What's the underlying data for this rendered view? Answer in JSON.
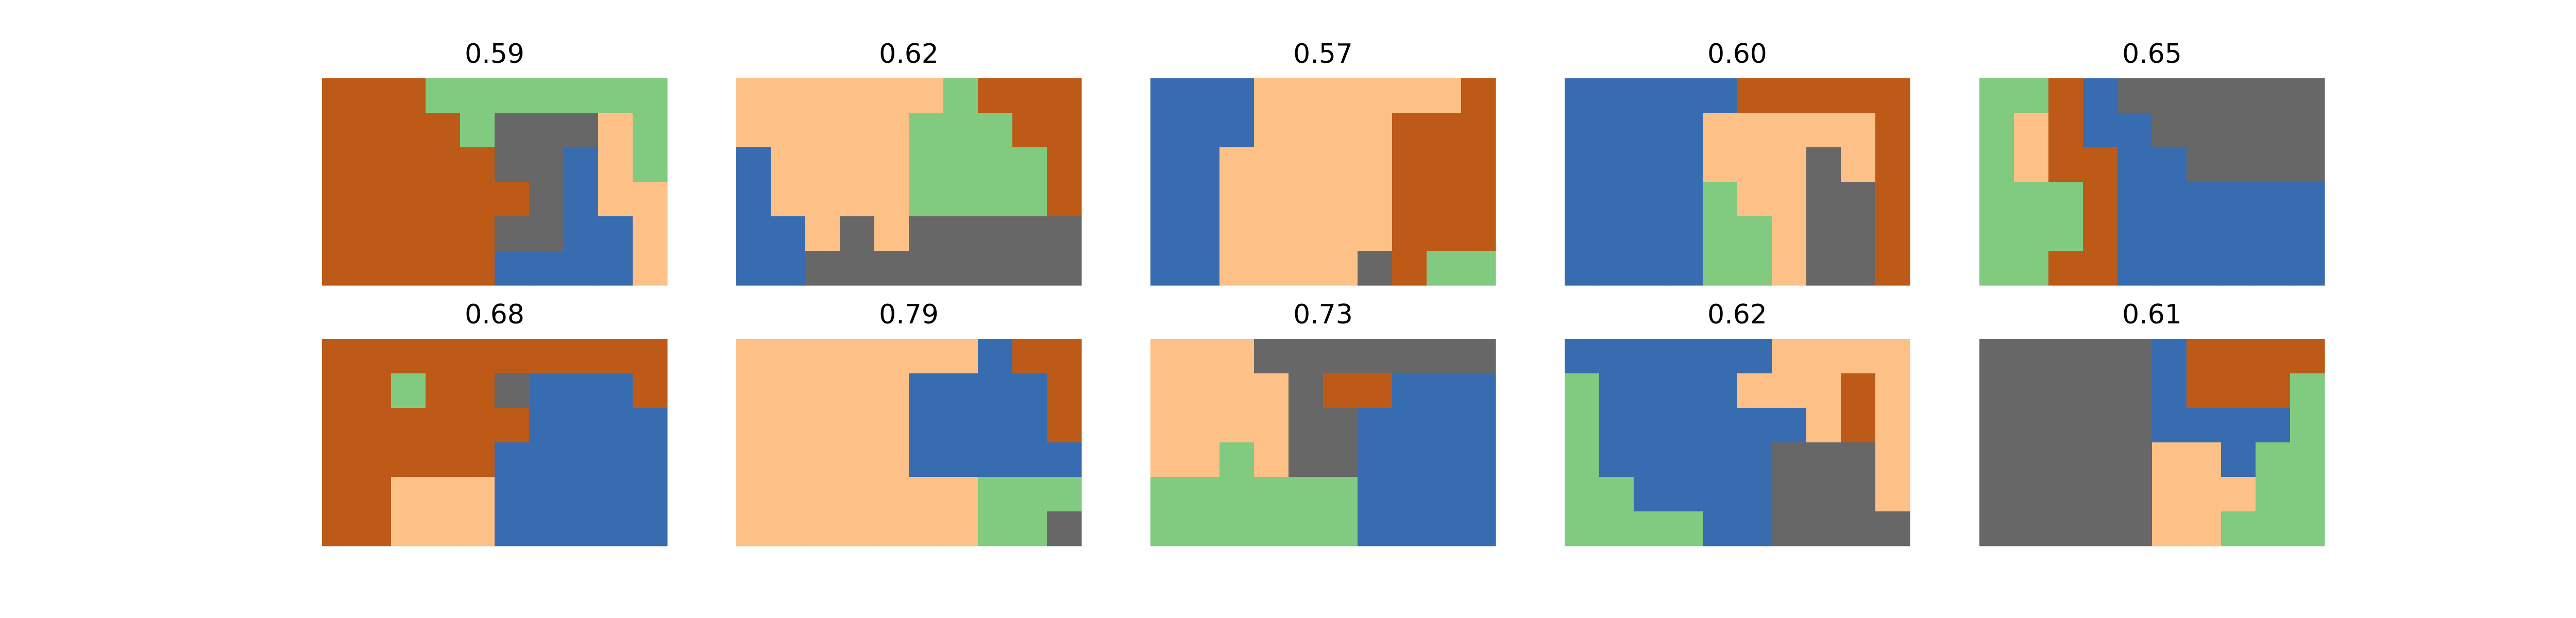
{
  "colors": {
    "0": "#be5a17",
    "1": "#80cb7f",
    "2": "#676767",
    "3": "#386cb0",
    "4": "#fdc086"
  },
  "chart_data": [
    {
      "type": "heatmap",
      "title": "0.59",
      "rows": [
        [
          0,
          0,
          0,
          1,
          1,
          1,
          1,
          1,
          1,
          1
        ],
        [
          0,
          0,
          0,
          0,
          1,
          2,
          2,
          2,
          4,
          1
        ],
        [
          0,
          0,
          0,
          0,
          0,
          2,
          2,
          3,
          4,
          1
        ],
        [
          0,
          0,
          0,
          0,
          0,
          0,
          2,
          3,
          4,
          4
        ],
        [
          0,
          0,
          0,
          0,
          0,
          2,
          2,
          3,
          3,
          4
        ],
        [
          0,
          0,
          0,
          0,
          0,
          3,
          3,
          3,
          3,
          4
        ]
      ]
    },
    {
      "type": "heatmap",
      "title": "0.62",
      "rows": [
        [
          4,
          4,
          4,
          4,
          4,
          4,
          1,
          0,
          0,
          0
        ],
        [
          4,
          4,
          4,
          4,
          4,
          1,
          1,
          1,
          0,
          0
        ],
        [
          3,
          4,
          4,
          4,
          4,
          1,
          1,
          1,
          1,
          0
        ],
        [
          3,
          4,
          4,
          4,
          4,
          1,
          1,
          1,
          1,
          0
        ],
        [
          3,
          3,
          4,
          2,
          4,
          2,
          2,
          2,
          2,
          2
        ],
        [
          3,
          3,
          2,
          2,
          2,
          2,
          2,
          2,
          2,
          2
        ]
      ]
    },
    {
      "type": "heatmap",
      "title": "0.57",
      "rows": [
        [
          3,
          3,
          3,
          4,
          4,
          4,
          4,
          4,
          4,
          0
        ],
        [
          3,
          3,
          3,
          4,
          4,
          4,
          4,
          0,
          0,
          0
        ],
        [
          3,
          3,
          4,
          4,
          4,
          4,
          4,
          0,
          0,
          0
        ],
        [
          3,
          3,
          4,
          4,
          4,
          4,
          4,
          0,
          0,
          0
        ],
        [
          3,
          3,
          4,
          4,
          4,
          4,
          4,
          0,
          0,
          0
        ],
        [
          3,
          3,
          4,
          4,
          4,
          4,
          2,
          0,
          1,
          1
        ]
      ]
    },
    {
      "type": "heatmap",
      "title": "0.60",
      "rows": [
        [
          3,
          3,
          3,
          3,
          3,
          0,
          0,
          0,
          0,
          0
        ],
        [
          3,
          3,
          3,
          3,
          4,
          4,
          4,
          4,
          4,
          0
        ],
        [
          3,
          3,
          3,
          3,
          4,
          4,
          4,
          2,
          4,
          0
        ],
        [
          3,
          3,
          3,
          3,
          1,
          4,
          4,
          2,
          2,
          0
        ],
        [
          3,
          3,
          3,
          3,
          1,
          1,
          4,
          2,
          2,
          0
        ],
        [
          3,
          3,
          3,
          3,
          1,
          1,
          4,
          2,
          2,
          0
        ]
      ]
    },
    {
      "type": "heatmap",
      "title": "0.65",
      "rows": [
        [
          1,
          1,
          0,
          3,
          2,
          2,
          2,
          2,
          2,
          2
        ],
        [
          1,
          4,
          0,
          3,
          3,
          2,
          2,
          2,
          2,
          2
        ],
        [
          1,
          4,
          0,
          0,
          3,
          3,
          2,
          2,
          2,
          2
        ],
        [
          1,
          1,
          1,
          0,
          3,
          3,
          3,
          3,
          3,
          3
        ],
        [
          1,
          1,
          1,
          0,
          3,
          3,
          3,
          3,
          3,
          3
        ],
        [
          1,
          1,
          0,
          0,
          3,
          3,
          3,
          3,
          3,
          3
        ]
      ]
    },
    {
      "type": "heatmap",
      "title": "0.68",
      "rows": [
        [
          0,
          0,
          0,
          0,
          0,
          0,
          0,
          0,
          0,
          0
        ],
        [
          0,
          0,
          1,
          0,
          0,
          2,
          3,
          3,
          3,
          0
        ],
        [
          0,
          0,
          0,
          0,
          0,
          0,
          3,
          3,
          3,
          3
        ],
        [
          0,
          0,
          0,
          0,
          0,
          3,
          3,
          3,
          3,
          3
        ],
        [
          0,
          0,
          4,
          4,
          4,
          3,
          3,
          3,
          3,
          3
        ],
        [
          0,
          0,
          4,
          4,
          4,
          3,
          3,
          3,
          3,
          3
        ]
      ]
    },
    {
      "type": "heatmap",
      "title": "0.79",
      "rows": [
        [
          4,
          4,
          4,
          4,
          4,
          4,
          4,
          3,
          0,
          0
        ],
        [
          4,
          4,
          4,
          4,
          4,
          3,
          3,
          3,
          3,
          0
        ],
        [
          4,
          4,
          4,
          4,
          4,
          3,
          3,
          3,
          3,
          0
        ],
        [
          4,
          4,
          4,
          4,
          4,
          3,
          3,
          3,
          3,
          3
        ],
        [
          4,
          4,
          4,
          4,
          4,
          4,
          4,
          1,
          1,
          1
        ],
        [
          4,
          4,
          4,
          4,
          4,
          4,
          4,
          1,
          1,
          2
        ]
      ]
    },
    {
      "type": "heatmap",
      "title": "0.73",
      "rows": [
        [
          4,
          4,
          4,
          2,
          2,
          2,
          2,
          2,
          2,
          2
        ],
        [
          4,
          4,
          4,
          4,
          2,
          0,
          0,
          3,
          3,
          3
        ],
        [
          4,
          4,
          4,
          4,
          2,
          2,
          3,
          3,
          3,
          3
        ],
        [
          4,
          4,
          1,
          4,
          2,
          2,
          3,
          3,
          3,
          3
        ],
        [
          1,
          1,
          1,
          1,
          1,
          1,
          3,
          3,
          3,
          3
        ],
        [
          1,
          1,
          1,
          1,
          1,
          1,
          3,
          3,
          3,
          3
        ]
      ]
    },
    {
      "type": "heatmap",
      "title": "0.62",
      "rows": [
        [
          3,
          3,
          3,
          3,
          3,
          3,
          4,
          4,
          4,
          4
        ],
        [
          1,
          3,
          3,
          3,
          3,
          4,
          4,
          4,
          0,
          4
        ],
        [
          1,
          3,
          3,
          3,
          3,
          3,
          3,
          4,
          0,
          4
        ],
        [
          1,
          3,
          3,
          3,
          3,
          3,
          2,
          2,
          2,
          4
        ],
        [
          1,
          1,
          3,
          3,
          3,
          3,
          2,
          2,
          2,
          4
        ],
        [
          1,
          1,
          1,
          1,
          3,
          3,
          2,
          2,
          2,
          2
        ]
      ]
    },
    {
      "type": "heatmap",
      "title": "0.61",
      "rows": [
        [
          2,
          2,
          2,
          2,
          2,
          3,
          0,
          0,
          0,
          0
        ],
        [
          2,
          2,
          2,
          2,
          2,
          3,
          0,
          0,
          0,
          1
        ],
        [
          2,
          2,
          2,
          2,
          2,
          3,
          3,
          3,
          3,
          1
        ],
        [
          2,
          2,
          2,
          2,
          2,
          4,
          4,
          3,
          1,
          1
        ],
        [
          2,
          2,
          2,
          2,
          2,
          4,
          4,
          4,
          1,
          1
        ],
        [
          2,
          2,
          2,
          2,
          2,
          4,
          4,
          1,
          1,
          1
        ]
      ]
    }
  ]
}
